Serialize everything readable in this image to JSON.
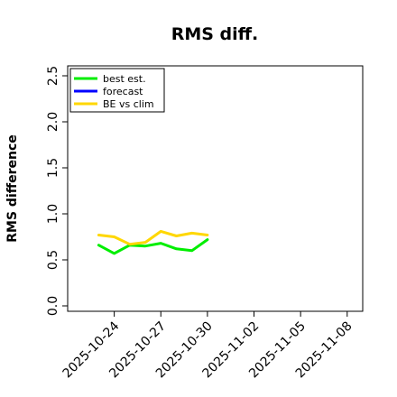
{
  "chart_data": {
    "type": "line",
    "title": "RMS diff.",
    "xlabel": "",
    "ylabel": "RMS difference",
    "ylim": [
      0.0,
      2.5
    ],
    "yticks": [
      "0.0",
      "0.5",
      "1.0",
      "1.5",
      "2.0",
      "2.5"
    ],
    "x_dates": [
      "2025-10-23",
      "2025-10-24",
      "2025-10-25",
      "2025-10-26",
      "2025-10-27",
      "2025-10-28",
      "2025-10-29",
      "2025-10-30"
    ],
    "xlim": [
      "2025-10-21",
      "2025-11-09"
    ],
    "xticks": [
      {
        "label": "2025-10-24",
        "color": "#000000"
      },
      {
        "label": "2025-10-27",
        "color": "#000000"
      },
      {
        "label": "2025-10-30",
        "color": "#228B22"
      },
      {
        "label": "2025-11-02",
        "color": "#000000"
      },
      {
        "label": "2025-11-05",
        "color": "#000000"
      },
      {
        "label": "2025-11-08",
        "color": "#000000"
      }
    ],
    "grid": false,
    "legend_position": "top-left",
    "series": [
      {
        "name": "best est.",
        "color": "#00ee00",
        "values": [
          0.66,
          0.57,
          0.66,
          0.65,
          0.68,
          0.62,
          0.6,
          0.72
        ]
      },
      {
        "name": "forecast",
        "color": "#0000ff",
        "values": [
          null,
          null,
          null,
          null,
          null,
          null,
          null,
          null
        ]
      },
      {
        "name": "BE vs clim",
        "color": "#ffd700",
        "values": [
          0.77,
          0.75,
          0.67,
          0.69,
          0.81,
          0.76,
          0.79,
          0.77
        ]
      }
    ]
  }
}
